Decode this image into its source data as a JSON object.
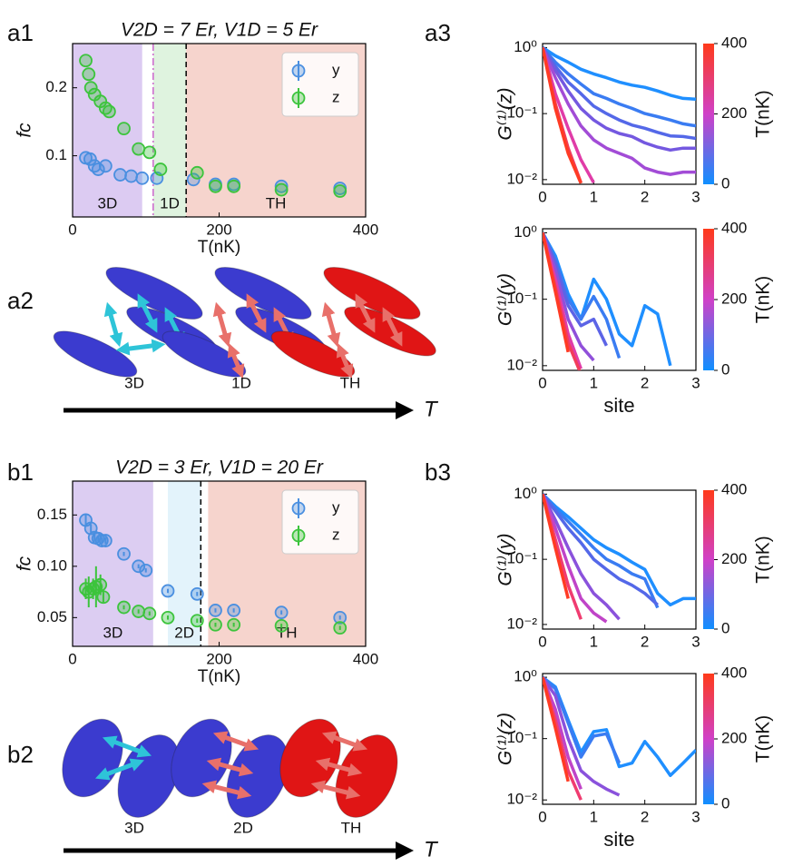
{
  "chart_data": [
    {
      "type": "scatter",
      "panel_label": "a1",
      "title": "V2D = 7 Er, V1D = 5 Er",
      "xlabel": "T(nK)",
      "ylabel": "fc",
      "xlim": [
        0,
        400
      ],
      "xticks": [
        0,
        200,
        400
      ],
      "ylim": [
        0.01,
        0.265
      ],
      "yticks": [
        0.1,
        0.2
      ],
      "legend": "upper right",
      "regions": [
        {
          "label": "3D",
          "from": 0,
          "to": 95,
          "color": "#dccbf2"
        },
        {
          "label": "1D",
          "from": 110,
          "to": 155,
          "color": "#dff3df"
        },
        {
          "label": "TH",
          "from": 155,
          "to": 400,
          "color": "#f6d4cd"
        }
      ],
      "vlines": [
        {
          "x": 110,
          "style": "dashdot",
          "color": "#cc66cc"
        },
        {
          "x": 155,
          "style": "dashed",
          "color": "#000000"
        }
      ],
      "series": [
        {
          "name": "y",
          "color": "#4a8fe0",
          "x": [
            18,
            24,
            30,
            35,
            45,
            65,
            80,
            95,
            115,
            165,
            195,
            220,
            285,
            365
          ],
          "values": [
            0.097,
            0.095,
            0.085,
            0.08,
            0.085,
            0.072,
            0.07,
            0.067,
            0.067,
            0.065,
            0.058,
            0.058,
            0.055,
            0.052
          ]
        },
        {
          "name": "z",
          "color": "#3cc43c",
          "x": [
            18,
            22,
            25,
            30,
            38,
            45,
            50,
            70,
            90,
            105,
            120,
            170,
            195,
            220,
            285,
            365
          ],
          "values": [
            0.24,
            0.22,
            0.2,
            0.19,
            0.18,
            0.17,
            0.165,
            0.14,
            0.11,
            0.105,
            0.08,
            0.075,
            0.055,
            0.055,
            0.05,
            0.048
          ]
        }
      ]
    },
    {
      "type": "line",
      "panel_label": "a3",
      "ylabel": "G⁽¹⁾(z)",
      "log_y": true,
      "x": [
        0,
        0.25,
        0.5,
        0.75,
        1,
        1.25,
        1.5,
        1.75,
        2,
        2.25,
        2.5,
        2.75,
        3
      ],
      "xlim": [
        0,
        3
      ],
      "xticks": [
        0,
        1,
        2,
        3
      ],
      "ylim": [
        0.0085,
        1.15
      ],
      "yticks": [
        {
          "value": 1,
          "label": "10⁰"
        },
        {
          "value": 0.1,
          "label": "10⁻¹"
        },
        {
          "value": 0.01,
          "label": "10⁻²"
        }
      ],
      "colorbar": {
        "label": "T(nK)",
        "lim": [
          0,
          400
        ],
        "ticks": [
          0,
          200,
          400
        ],
        "colors": [
          "#0f8fff",
          "#d040c8",
          "#ff3a1a"
        ]
      },
      "series": [
        {
          "color": "#1f8fff",
          "values": [
            1,
            0.75,
            0.6,
            0.47,
            0.4,
            0.35,
            0.3,
            0.27,
            0.25,
            0.22,
            0.19,
            0.17,
            0.165
          ]
        },
        {
          "color": "#3a7cf2",
          "values": [
            1,
            0.6,
            0.4,
            0.28,
            0.2,
            0.17,
            0.14,
            0.12,
            0.1,
            0.09,
            0.08,
            0.07,
            0.065
          ]
        },
        {
          "color": "#5468e8",
          "values": [
            1,
            0.52,
            0.3,
            0.2,
            0.13,
            0.1,
            0.08,
            0.067,
            0.06,
            0.052,
            0.046,
            0.045,
            0.042
          ]
        },
        {
          "color": "#7458e0",
          "values": [
            1,
            0.45,
            0.22,
            0.12,
            0.08,
            0.06,
            0.05,
            0.045,
            0.036,
            0.031,
            0.028,
            0.03,
            0.03
          ]
        },
        {
          "color": "#a24cd6",
          "values": [
            1,
            0.35,
            0.14,
            0.065,
            0.04,
            0.03,
            0.025,
            0.021,
            0.015,
            0.013,
            0.012,
            0.013,
            0.013
          ]
        },
        {
          "color": "#e03ca8",
          "values": [
            1,
            0.2,
            0.06,
            0.02,
            0.009,
            null,
            null,
            null,
            null,
            null,
            null,
            null,
            null
          ]
        },
        {
          "color": "#f23c5a",
          "values": [
            1,
            0.14,
            0.03,
            0.009,
            null,
            null,
            null,
            null,
            null,
            null,
            null,
            null,
            null
          ]
        },
        {
          "color": "#ff3b24",
          "values": [
            1,
            0.12,
            0.025,
            0.0088,
            null,
            null,
            null,
            null,
            null,
            null,
            null,
            null,
            null
          ]
        }
      ]
    },
    {
      "type": "line",
      "ylabel": "G⁽¹⁾(y)",
      "xlabel": "site",
      "log_y": true,
      "x": [
        0,
        0.25,
        0.5,
        0.75,
        1,
        1.25,
        1.5,
        1.75,
        2,
        2.25,
        2.5,
        2.75,
        3
      ],
      "xlim": [
        0,
        3
      ],
      "xticks": [
        0,
        1,
        2,
        3
      ],
      "ylim": [
        0.0085,
        1.15
      ],
      "yticks": [
        {
          "value": 1,
          "label": "10⁰"
        },
        {
          "value": 0.1,
          "label": "10⁻¹"
        },
        {
          "value": 0.01,
          "label": "10⁻²"
        }
      ],
      "colorbar": {
        "label": "T(nK)",
        "lim": [
          0,
          400
        ],
        "ticks": [
          0,
          200,
          400
        ],
        "colors": [
          "#0f8fff",
          "#d040c8",
          "#ff3a1a"
        ]
      },
      "series": [
        {
          "color": "#1f8fff",
          "values": [
            1,
            0.45,
            0.12,
            0.05,
            0.2,
            0.1,
            0.03,
            0.02,
            0.08,
            0.06,
            0.01,
            null,
            null
          ]
        },
        {
          "color": "#3a7cf2",
          "values": [
            1,
            0.4,
            0.1,
            0.05,
            0.11,
            0.05,
            0.013,
            null,
            null,
            null,
            null,
            null,
            null
          ]
        },
        {
          "color": "#5c64e6",
          "values": [
            1,
            0.35,
            0.08,
            0.04,
            0.05,
            0.02,
            null,
            null,
            null,
            null,
            null,
            null,
            null
          ]
        },
        {
          "color": "#9050da",
          "values": [
            1,
            0.28,
            0.05,
            0.02,
            0.012,
            null,
            null,
            null,
            null,
            null,
            null,
            null,
            null
          ]
        },
        {
          "color": "#e03ca8",
          "values": [
            1,
            0.2,
            0.03,
            0.009,
            null,
            null,
            null,
            null,
            null,
            null,
            null,
            null,
            null
          ]
        },
        {
          "color": "#f23c5a",
          "values": [
            1,
            0.15,
            0.022,
            0.0075,
            null,
            null,
            null,
            null,
            null,
            null,
            null,
            null,
            null
          ]
        },
        {
          "color": "#ff3b24",
          "values": [
            1,
            0.13,
            0.016,
            null,
            null,
            null,
            null,
            null,
            null,
            null,
            null,
            null,
            null
          ]
        }
      ]
    },
    {
      "type": "scatter",
      "panel_label": "b1",
      "title": "V2D = 3 Er, V1D = 20 Er",
      "xlabel": "T(nK)",
      "ylabel": "fc",
      "xlim": [
        0,
        400
      ],
      "xticks": [
        0,
        200,
        400
      ],
      "ylim": [
        0.022,
        0.183
      ],
      "yticks": [
        0.05,
        {
          "value": 0.1,
          "label": "0.10"
        },
        0.15
      ],
      "legend": "upper right",
      "regions": [
        {
          "label": "3D",
          "from": 0,
          "to": 110,
          "color": "#dccdf2"
        },
        {
          "label": "2D",
          "from": 130,
          "to": 175,
          "color": "#e3f3fb"
        },
        {
          "label": "TH",
          "from": 185,
          "to": 400,
          "color": "#f6d4cd"
        }
      ],
      "vlines": [
        {
          "x": 175,
          "style": "dashed",
          "color": "#000000"
        }
      ],
      "series": [
        {
          "name": "y",
          "color": "#4a8fe0",
          "x": [
            18,
            25,
            30,
            35,
            40,
            45,
            70,
            90,
            100,
            130,
            170,
            195,
            220,
            285,
            365
          ],
          "values": [
            0.145,
            0.137,
            0.128,
            0.127,
            0.125,
            0.125,
            0.112,
            0.1,
            0.096,
            0.076,
            0.073,
            0.057,
            0.057,
            0.055,
            0.05
          ],
          "errors": [
            0.006,
            0.004,
            0.004,
            0.003,
            0.003,
            0.003,
            0.002,
            0.002,
            0.002,
            0.002,
            0.002,
            0.002,
            0.002,
            0.002,
            0.002
          ]
        },
        {
          "name": "z",
          "color": "#3cc43c",
          "x": [
            18,
            22,
            28,
            32,
            38,
            42,
            70,
            90,
            105,
            130,
            170,
            195,
            220,
            285,
            365
          ],
          "values": [
            0.078,
            0.075,
            0.078,
            0.08,
            0.082,
            0.07,
            0.06,
            0.056,
            0.054,
            0.05,
            0.047,
            0.043,
            0.043,
            0.042,
            0.04
          ],
          "errors": [
            0.01,
            0.015,
            0.01,
            0.02,
            0.01,
            0.005,
            0.002,
            0.002,
            0.002,
            0.002,
            0.002,
            0.002,
            0.002,
            0.002,
            0.002
          ]
        }
      ]
    },
    {
      "type": "line",
      "panel_label": "b3",
      "ylabel": "G⁽¹⁾(y)",
      "log_y": true,
      "x": [
        0,
        0.25,
        0.5,
        0.75,
        1,
        1.25,
        1.5,
        1.75,
        2,
        2.25,
        2.5,
        2.75,
        3
      ],
      "xlim": [
        0,
        3
      ],
      "xticks": [
        0,
        1,
        2,
        3
      ],
      "ylim": [
        0.0085,
        1.15
      ],
      "yticks": [
        {
          "value": 1,
          "label": "10⁰"
        },
        {
          "value": 0.1,
          "label": "10⁻¹"
        },
        {
          "value": 0.01,
          "label": "10⁻²"
        }
      ],
      "colorbar": {
        "label": "T(nK)",
        "lim": [
          0,
          400
        ],
        "ticks": [
          0,
          200,
          400
        ],
        "colors": [
          "#0f8fff",
          "#d040c8",
          "#ff3a1a"
        ]
      },
      "series": [
        {
          "color": "#1f8fff",
          "values": [
            1,
            0.65,
            0.45,
            0.3,
            0.2,
            0.15,
            0.12,
            0.09,
            0.07,
            0.03,
            0.02,
            0.025,
            0.025
          ]
        },
        {
          "color": "#3a7cf2",
          "values": [
            1,
            0.6,
            0.38,
            0.24,
            0.15,
            0.1,
            0.08,
            0.06,
            0.05,
            0.018,
            null,
            null,
            null
          ]
        },
        {
          "color": "#5468e8",
          "values": [
            1,
            0.55,
            0.3,
            0.18,
            0.1,
            0.07,
            0.05,
            0.04,
            0.03,
            0.02,
            null,
            null,
            null
          ]
        },
        {
          "color": "#8a52dc",
          "values": [
            1,
            0.4,
            0.15,
            0.06,
            0.03,
            0.02,
            0.012,
            null,
            null,
            null,
            null,
            null,
            null
          ]
        },
        {
          "color": "#c044c8",
          "values": [
            1,
            0.3,
            0.08,
            0.025,
            0.015,
            0.011,
            null,
            null,
            null,
            null,
            null,
            null,
            null
          ]
        },
        {
          "color": "#f03c70",
          "values": [
            1,
            0.2,
            0.04,
            0.012,
            null,
            null,
            null,
            null,
            null,
            null,
            null,
            null,
            null
          ]
        },
        {
          "color": "#ff3b24",
          "values": [
            1,
            0.15,
            0.025,
            null,
            null,
            null,
            null,
            null,
            null,
            null,
            null,
            null,
            null
          ]
        }
      ]
    },
    {
      "type": "line",
      "ylabel": "G⁽¹⁾(z)",
      "xlabel": "site",
      "log_y": true,
      "x": [
        0,
        0.25,
        0.5,
        0.75,
        1,
        1.25,
        1.5,
        1.75,
        2,
        2.25,
        2.5,
        2.75,
        3
      ],
      "xlim": [
        0,
        3
      ],
      "xticks": [
        0,
        1,
        2,
        3
      ],
      "ylim": [
        0.0085,
        1.15
      ],
      "yticks": [
        {
          "value": 1,
          "label": "10⁰"
        },
        {
          "value": 0.1,
          "label": "10⁻¹"
        },
        {
          "value": 0.01,
          "label": "10⁻²"
        }
      ],
      "colorbar": {
        "label": "T(nK)",
        "lim": [
          0,
          400
        ],
        "ticks": [
          0,
          200,
          400
        ],
        "colors": [
          "#0f8fff",
          "#d040c8",
          "#ff3a1a"
        ]
      },
      "series": [
        {
          "color": "#1f8fff",
          "values": [
            1,
            0.7,
            0.2,
            0.06,
            0.13,
            0.14,
            0.035,
            0.04,
            0.09,
            0.05,
            0.025,
            0.04,
            0.065
          ]
        },
        {
          "color": "#3a7cf2",
          "values": [
            1,
            0.65,
            0.18,
            0.05,
            0.11,
            0.12,
            0.04,
            null,
            null,
            null,
            null,
            null,
            null
          ]
        },
        {
          "color": "#8a52dc",
          "values": [
            1,
            0.5,
            0.1,
            0.03,
            0.02,
            0.015,
            0.012,
            null,
            null,
            null,
            null,
            null,
            null
          ]
        },
        {
          "color": "#c044c8",
          "values": [
            1,
            0.3,
            0.05,
            0.015,
            null,
            null,
            null,
            null,
            null,
            null,
            null,
            null,
            null
          ]
        },
        {
          "color": "#f03c70",
          "values": [
            1,
            0.2,
            0.03,
            0.01,
            null,
            null,
            null,
            null,
            null,
            null,
            null,
            null,
            null
          ]
        },
        {
          "color": "#ff3b24",
          "values": [
            1,
            0.15,
            0.02,
            null,
            null,
            null,
            null,
            null,
            null,
            null,
            null,
            null,
            null
          ]
        }
      ]
    }
  ],
  "diagrams": [
    {
      "panel_label": "a2",
      "labels": [
        "3D",
        "1D",
        "TH"
      ],
      "axis_label": "T"
    },
    {
      "panel_label": "b2",
      "labels": [
        "3D",
        "2D",
        "TH"
      ],
      "axis_label": "T"
    }
  ]
}
